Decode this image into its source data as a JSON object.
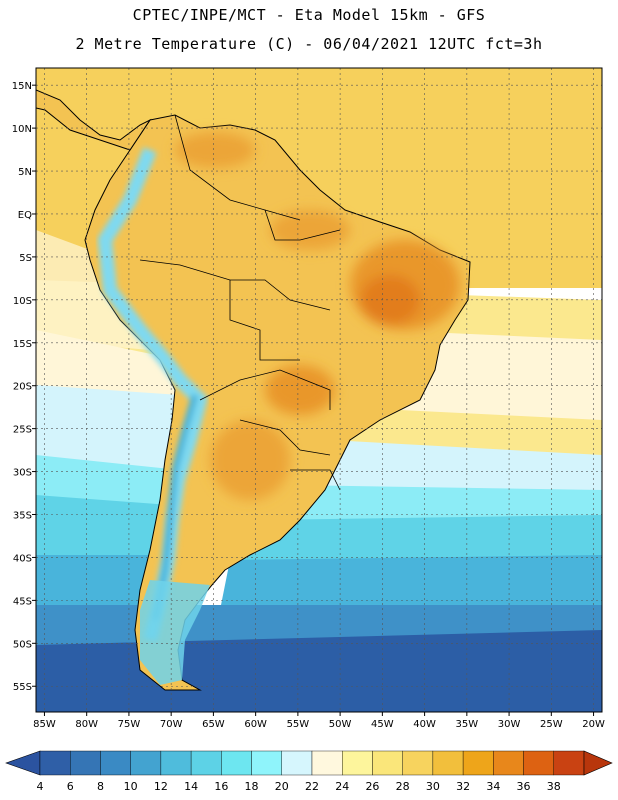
{
  "header": {
    "line1": "CPTEC/INPE/MCT -  Eta Model 15km - GFS",
    "line2": "2 Metre Temperature (C) - 06/04/2021 12UTC fct=3h"
  },
  "axes": {
    "lat_labels": [
      "15N",
      "10N",
      "5N",
      "EQ",
      "5S",
      "10S",
      "15S",
      "20S",
      "25S",
      "30S",
      "35S",
      "40S",
      "45S",
      "50S",
      "55S"
    ],
    "lat_values": [
      15,
      10,
      5,
      0,
      -5,
      -10,
      -15,
      -20,
      -25,
      -30,
      -35,
      -40,
      -45,
      -50,
      -55
    ],
    "lon_labels": [
      "85W",
      "80W",
      "75W",
      "70W",
      "65W",
      "60W",
      "55W",
      "50W",
      "45W",
      "40W",
      "35W",
      "30W",
      "25W",
      "20W"
    ],
    "lon_values": [
      -85,
      -80,
      -75,
      -70,
      -65,
      -60,
      -55,
      -50,
      -45,
      -40,
      -35,
      -30,
      -25,
      -20
    ],
    "lat_range": [
      -58,
      17
    ],
    "lon_range": [
      -86,
      -19
    ]
  },
  "colorbar": {
    "labels": [
      "4",
      "6",
      "8",
      "10",
      "12",
      "14",
      "16",
      "18",
      "20",
      "22",
      "24",
      "26",
      "28",
      "30",
      "32",
      "34",
      "36",
      "38"
    ],
    "colors": [
      "#2f5fa7",
      "#3575b5",
      "#3a8ac4",
      "#43a3d0",
      "#4fbcdc",
      "#5dd2e6",
      "#6de6f0",
      "#8ff4fb",
      "#d6f6fd",
      "#fff8de",
      "#fdf59c",
      "#fae67a",
      "#f7d35e",
      "#f2bf3c",
      "#eea51a",
      "#e8871b",
      "#dd6212",
      "#c94212"
    ],
    "below_color": "#2b53a0",
    "above_color": "#b8360c"
  },
  "palette": {
    "deep_ocean": "#2c5ea6",
    "sea_mid": "#3f91c8",
    "sea_cyan": "#5fd3e7",
    "sea_light": "#8cecf6",
    "sea_pale": "#d4f4fc",
    "sea_cream": "#fff6d8",
    "sea_yellow": "#fbe88e",
    "land_main": "#f3c352",
    "land_hot": "#eca537",
    "land_hottest": "#e27d1c",
    "andes_cold": "#7fd9f0",
    "andes_cool": "#4eb6dc"
  }
}
